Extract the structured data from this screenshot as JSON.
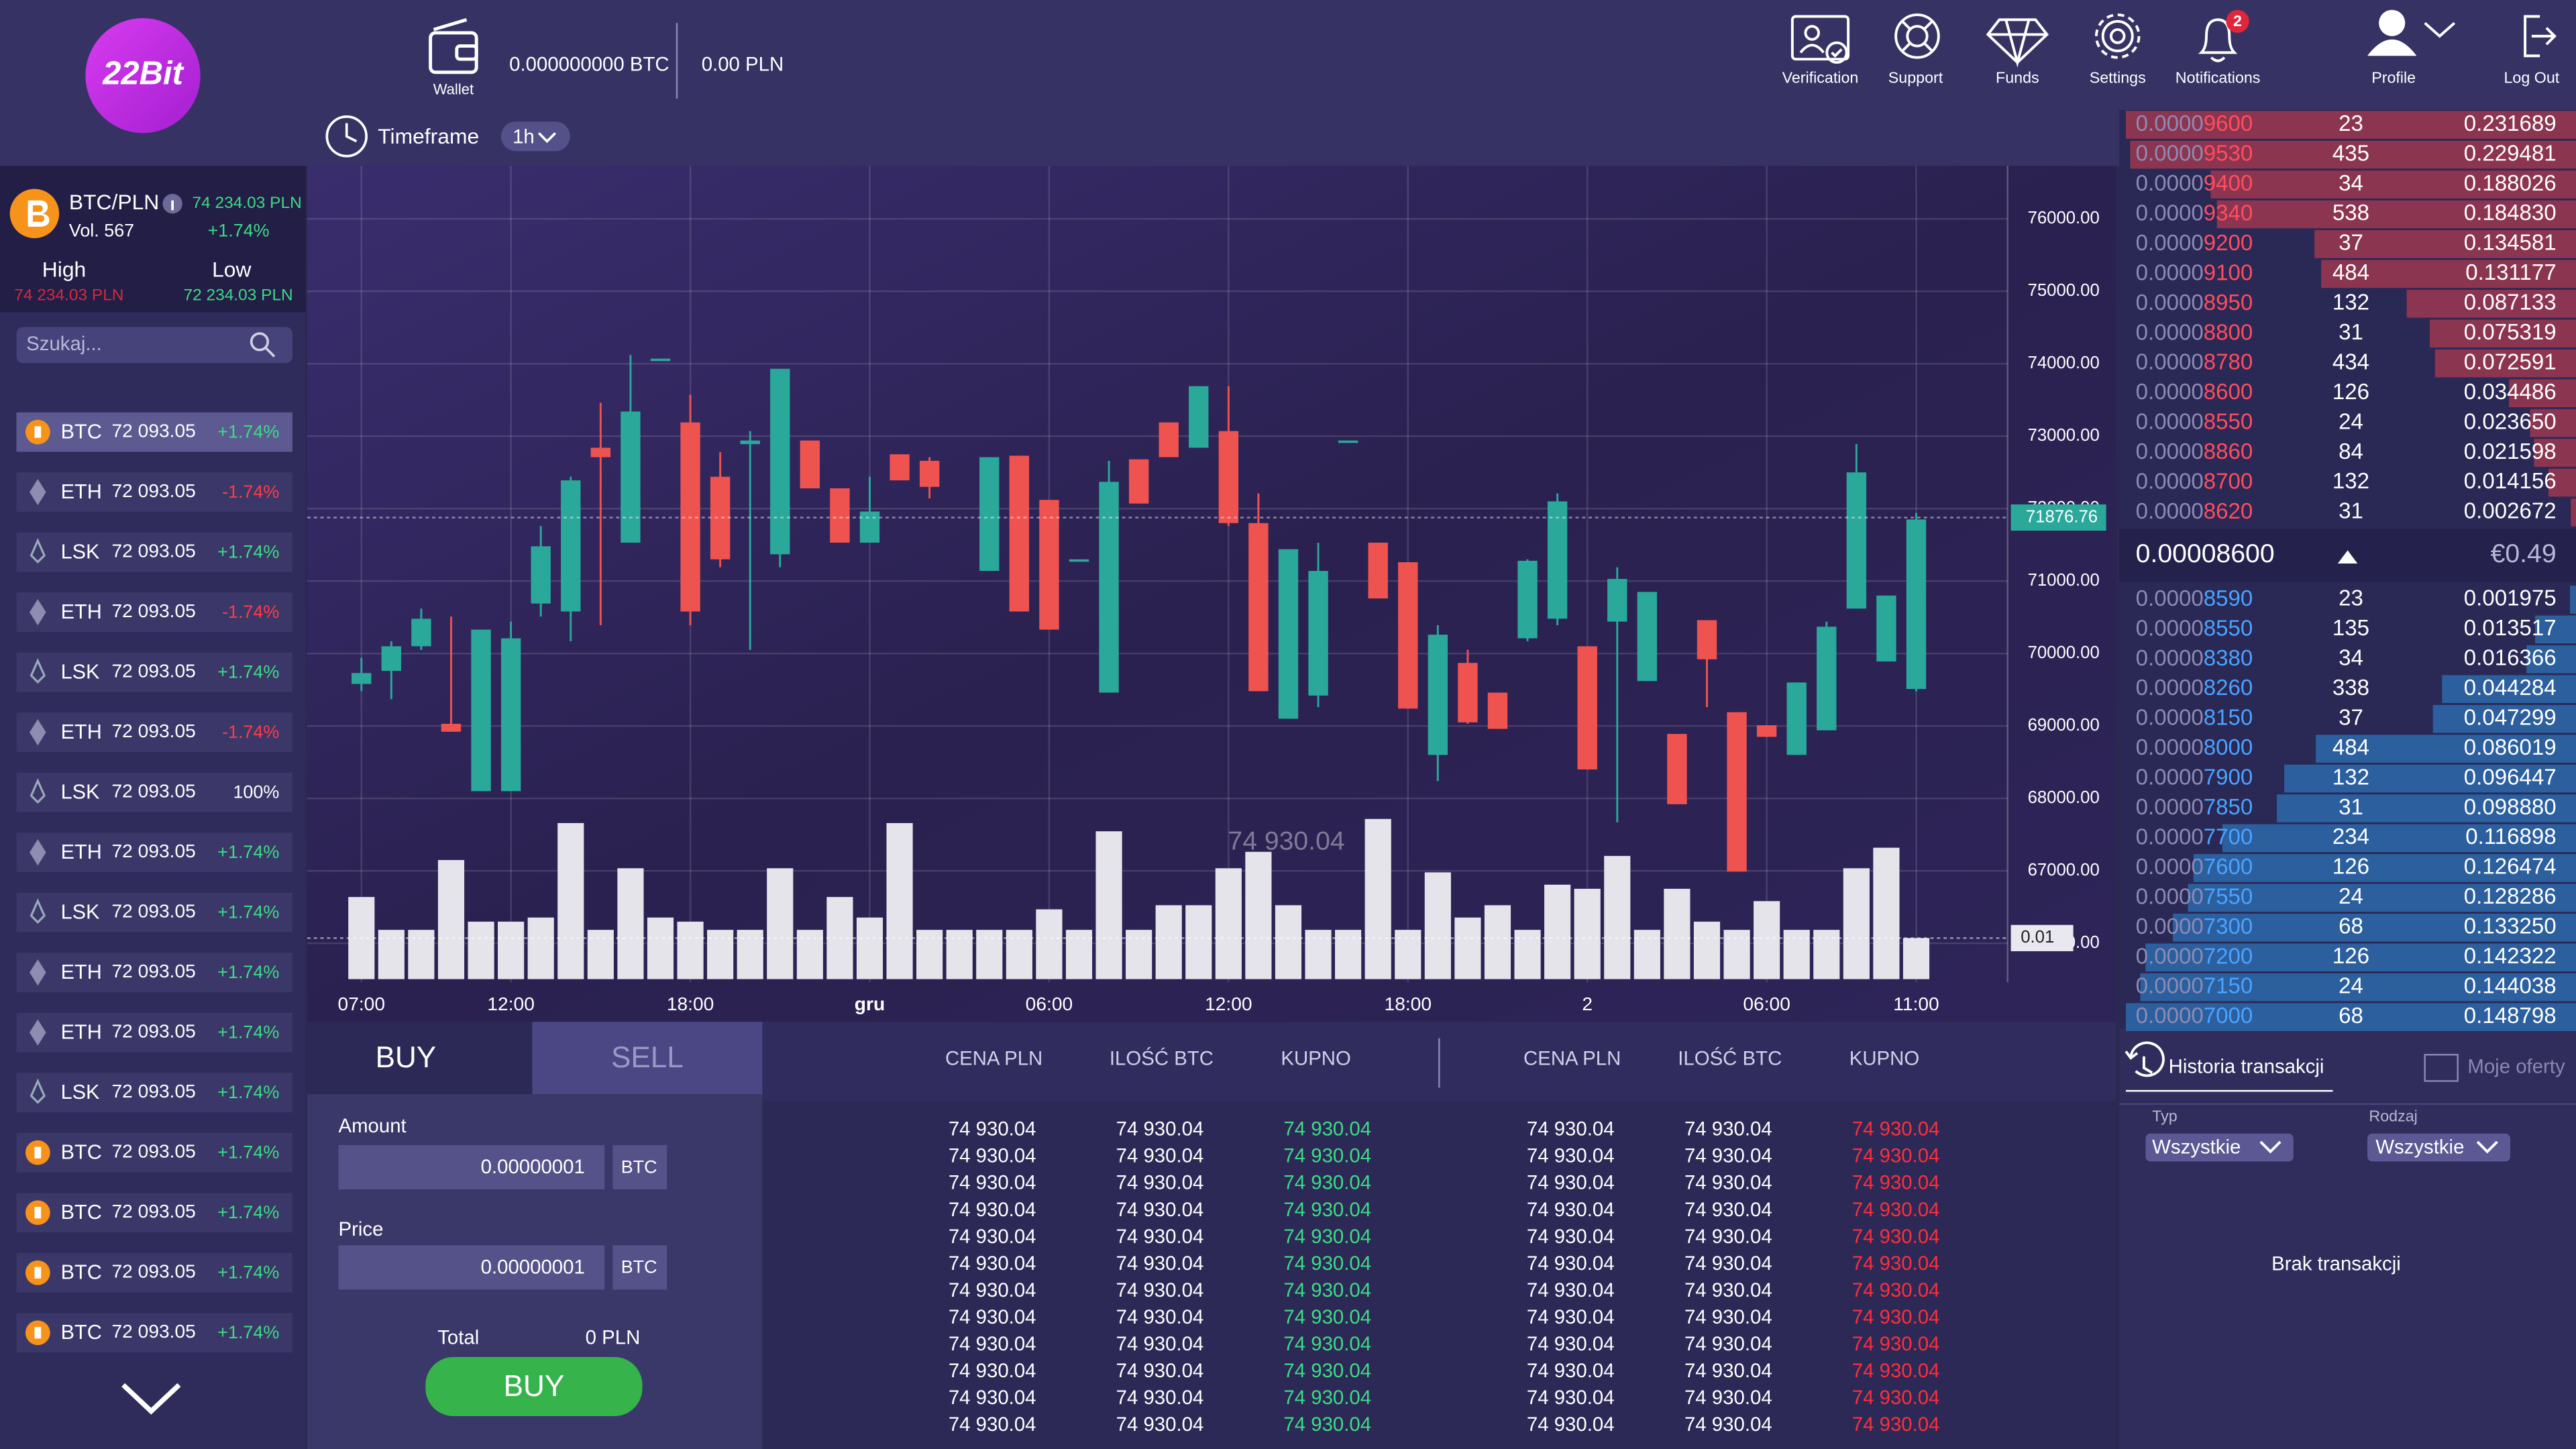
{
  "header": {
    "logo": "22Bit",
    "wallet_label": "Wallet",
    "wallet_btc": "0.000000000 BTC",
    "wallet_pln": "0.00 PLN",
    "timeframe_label": "Timeframe",
    "timeframe_value": "1h",
    "nav": [
      "Verification",
      "Support",
      "Funds",
      "Settings",
      "Notifications",
      "Profile",
      "Log Out"
    ],
    "notification_count": 2
  },
  "market": {
    "pair": "BTC/PLN",
    "price": "74 234.03 PLN",
    "volume": "Vol. 567",
    "change": "+1.74%",
    "high_label": "High",
    "high": "74 234.03 PLN",
    "low_label": "Low",
    "low": "72 234.03 PLN",
    "search_placeholder": "Szukaj..."
  },
  "coin_list": [
    {
      "symbol": "BTC",
      "price": "72 093.05",
      "change": "+1.74%",
      "color": "#3ddc84",
      "icon": "bitcoin"
    },
    {
      "symbol": "ETH",
      "price": "72 093.05",
      "change": "-1.74%",
      "color": "#ff3b46",
      "icon": "ethereum"
    },
    {
      "symbol": "LSK",
      "price": "72 093.05",
      "change": "+1.74%",
      "color": "#3ddc84",
      "icon": "lisk"
    },
    {
      "symbol": "ETH",
      "price": "72 093.05",
      "change": "-1.74%",
      "color": "#ff3b46",
      "icon": "ethereum"
    },
    {
      "symbol": "LSK",
      "price": "72 093.05",
      "change": "+1.74%",
      "color": "#3ddc84",
      "icon": "lisk"
    },
    {
      "symbol": "ETH",
      "price": "72 093.05",
      "change": "-1.74%",
      "color": "#ff3b46",
      "icon": "ethereum"
    },
    {
      "symbol": "LSK",
      "price": "72 093.05",
      "change": "100%",
      "color": "#ffffff",
      "icon": "lisk"
    },
    {
      "symbol": "ETH",
      "price": "72 093.05",
      "change": "+1.74%",
      "color": "#3ddc84",
      "icon": "ethereum"
    },
    {
      "symbol": "LSK",
      "price": "72 093.05",
      "change": "+1.74%",
      "color": "#3ddc84",
      "icon": "lisk"
    },
    {
      "symbol": "ETH",
      "price": "72 093.05",
      "change": "+1.74%",
      "color": "#3ddc84",
      "icon": "ethereum"
    },
    {
      "symbol": "ETH",
      "price": "72 093.05",
      "change": "+1.74%",
      "color": "#3ddc84",
      "icon": "ethereum"
    },
    {
      "symbol": "LSK",
      "price": "72 093.05",
      "change": "+1.74%",
      "color": "#3ddc84",
      "icon": "lisk"
    },
    {
      "symbol": "BTC",
      "price": "72 093.05",
      "change": "+1.74%",
      "color": "#3ddc84",
      "icon": "bitcoin"
    },
    {
      "symbol": "BTC",
      "price": "72 093.05",
      "change": "+1.74%",
      "color": "#3ddc84",
      "icon": "bitcoin"
    },
    {
      "symbol": "BTC",
      "price": "72 093.05",
      "change": "+1.74%",
      "color": "#3ddc84",
      "icon": "bitcoin"
    },
    {
      "symbol": "BTC",
      "price": "72 093.05",
      "change": "+1.74%",
      "color": "#3ddc84",
      "icon": "bitcoin"
    }
  ],
  "chart_data": {
    "type": "candlestick",
    "categories": [
      "07:00",
      null,
      null,
      null,
      null,
      "12:00",
      null,
      null,
      null,
      null,
      null,
      "18:00",
      null,
      null,
      null,
      null,
      null,
      "gru",
      null,
      null,
      null,
      null,
      null,
      "06:00",
      null,
      null,
      null,
      null,
      null,
      "12:00",
      null,
      null,
      null,
      null,
      null,
      "18:00",
      null,
      null,
      null,
      null,
      null,
      "2",
      null,
      null,
      null,
      null,
      null,
      "06:00",
      null,
      null,
      null,
      null,
      "11:00"
    ],
    "open": [
      69580,
      69760,
      70100,
      69030,
      68100,
      68100,
      70690,
      70580,
      72840,
      71530,
      74070,
      73190,
      72440,
      72890,
      71370,
      72940,
      72280,
      71530,
      72750,
      72660,
      null,
      71140,
      72730,
      72120,
      71300,
      69460,
      72680,
      73190,
      72840,
      73070,
      71800,
      69100,
      69420,
      72940,
      71530,
      71260,
      68600,
      69870,
      69460,
      70210,
      70480,
      70100,
      70440,
      69620,
      68890,
      70460,
      69190,
      69010,
      68600,
      68940,
      70620,
      69890,
      69510
    ],
    "high": [
      69940,
      70170,
      70620,
      70510,
      70330,
      70440,
      71760,
      72440,
      73460,
      74120,
      74070,
      73570,
      72780,
      73070,
      73930,
      72940,
      72280,
      72440,
      72750,
      72710,
      null,
      72710,
      72730,
      72120,
      71300,
      72660,
      72680,
      73190,
      73690,
      73690,
      72210,
      71440,
      71530,
      72940,
      71530,
      71260,
      70390,
      70050,
      69460,
      71300,
      72210,
      70100,
      71190,
      70850,
      68890,
      70460,
      69190,
      69010,
      69600,
      70440,
      72890,
      70800,
      71940
    ],
    "low": [
      69480,
      69370,
      70050,
      68920,
      68100,
      68100,
      70510,
      70170,
      70390,
      71530,
      74070,
      70390,
      71190,
      70050,
      71190,
      72280,
      71530,
      71530,
      72390,
      72140,
      null,
      71140,
      70580,
      70330,
      71300,
      69460,
      72070,
      72710,
      72840,
      71760,
      69480,
      69100,
      69260,
      72940,
      70760,
      69240,
      68240,
      69030,
      68960,
      70170,
      70390,
      68400,
      67670,
      69620,
      67920,
      69260,
      66990,
      68850,
      68600,
      68940,
      70620,
      69890,
      69480
    ],
    "close": [
      69730,
      70100,
      70480,
      68920,
      70330,
      70210,
      71480,
      72390,
      72710,
      73340,
      74070,
      70580,
      71300,
      72940,
      73930,
      72280,
      71530,
      71960,
      72390,
      72300,
      null,
      72710,
      70580,
      70330,
      71300,
      72370,
      72070,
      72710,
      73690,
      71800,
      69480,
      71440,
      71140,
      72940,
      70760,
      69240,
      70260,
      69050,
      68960,
      71280,
      72100,
      68400,
      71030,
      70850,
      67920,
      69920,
      66990,
      68850,
      69600,
      70370,
      72500,
      70800,
      71850
    ],
    "volume": [
      0.02,
      0.012,
      0.012,
      0.029,
      0.014,
      0.014,
      0.015,
      0.038,
      0.012,
      0.027,
      0.015,
      0.014,
      0.012,
      0.012,
      0.027,
      0.012,
      0.02,
      0.015,
      0.038,
      0.012,
      0.012,
      0.012,
      0.012,
      0.017,
      0.012,
      0.036,
      0.012,
      0.018,
      0.018,
      0.027,
      0.031,
      0.018,
      0.012,
      0.012,
      0.039,
      0.012,
      0.026,
      0.015,
      0.018,
      0.012,
      0.023,
      0.022,
      0.03,
      0.012,
      0.022,
      0.014,
      0.012,
      0.019,
      0.012,
      0.012,
      0.027,
      0.032,
      0.01
    ],
    "ylim": [
      65460,
      76730
    ],
    "yticks": [
      {
        "value": 66000,
        "label": "66000.00"
      },
      {
        "value": 67000,
        "label": "67000.00"
      },
      {
        "value": 68000,
        "label": "68000.00"
      },
      {
        "value": 69000,
        "label": "69000.00"
      },
      {
        "value": 70000,
        "label": "70000.00"
      },
      {
        "value": 71000,
        "label": "71000.00"
      },
      {
        "value": 72000,
        "label": "72000.00"
      },
      {
        "value": 73000,
        "label": "73000.00"
      },
      {
        "value": 74000,
        "label": "74000.00"
      },
      {
        "value": 75000,
        "label": "75000.00"
      },
      {
        "value": 76000,
        "label": "76000.00"
      }
    ],
    "volume_lim": [
      0,
      0.05
    ],
    "current_price": 71876.76,
    "volume_marker": 0.01,
    "watermark": "74 930.04",
    "up_color": "#2aa89a",
    "down_color": "#ef5350",
    "volume_color": "#e4e4ea",
    "grid": true
  },
  "order_book": {
    "asks": [
      [
        "0.00009600",
        "23",
        "0.231689"
      ],
      [
        "0.00009530",
        "435",
        "0.229481"
      ],
      [
        "0.00009400",
        "34",
        "0.188026"
      ],
      [
        "0.00009340",
        "538",
        "0.184830"
      ],
      [
        "0.00009200",
        "37",
        "0.134581"
      ],
      [
        "0.00009100",
        "484",
        "0.131177"
      ],
      [
        "0.00008950",
        "132",
        "0.087133"
      ],
      [
        "0.00008800",
        "31",
        "0.075319"
      ],
      [
        "0.00008780",
        "434",
        "0.072591"
      ],
      [
        "0.00008600",
        "126",
        "0.034486"
      ],
      [
        "0.00008550",
        "24",
        "0.023650"
      ],
      [
        "0.00008860",
        "84",
        "0.021598"
      ],
      [
        "0.00008700",
        "132",
        "0.014156"
      ],
      [
        "0.00008620",
        "31",
        "0.002672"
      ]
    ],
    "last_price": "0.00008600",
    "last_price_eur": "€0.49",
    "bids": [
      [
        "0.00008590",
        "23",
        "0.001975"
      ],
      [
        "0.00008550",
        "135",
        "0.013517"
      ],
      [
        "0.00008380",
        "34",
        "0.016366"
      ],
      [
        "0.00008260",
        "338",
        "0.044284"
      ],
      [
        "0.00008150",
        "37",
        "0.047299"
      ],
      [
        "0.00008000",
        "484",
        "0.086019"
      ],
      [
        "0.00007900",
        "132",
        "0.096447"
      ],
      [
        "0.00007850",
        "31",
        "0.098880"
      ],
      [
        "0.00007700",
        "234",
        "0.116898"
      ],
      [
        "0.00007600",
        "126",
        "0.126474"
      ],
      [
        "0.00007550",
        "24",
        "0.128286"
      ],
      [
        "0.00007300",
        "68",
        "0.133250"
      ],
      [
        "0.00007200",
        "126",
        "0.142322"
      ],
      [
        "0.00007150",
        "24",
        "0.144038"
      ],
      [
        "0.00007000",
        "68",
        "0.148798"
      ]
    ],
    "ask_color": "#ff4d5e",
    "bid_color": "#4aa3ff",
    "ask_bar_color": "#8c3550",
    "bid_bar_color": "#2c5f9e"
  },
  "order_form": {
    "tabs": [
      "BUY",
      "SELL"
    ],
    "amount_label": "Amount",
    "amount": "0.00000001",
    "amount_unit": "BTC",
    "price_label": "Price",
    "price": "0.00000001",
    "price_unit": "BTC",
    "total_label": "Total",
    "total": "0 PLN",
    "submit": "BUY"
  },
  "trades": {
    "buy": {
      "headers": [
        "CENA PLN",
        "ILOŚĆ BTC",
        "KUPNO"
      ],
      "accent": "#3ddc84",
      "rows": [
        [
          "74 930.04",
          "74 930.04",
          "74 930.04"
        ],
        [
          "74 930.04",
          "74 930.04",
          "74 930.04"
        ],
        [
          "74 930.04",
          "74 930.04",
          "74 930.04"
        ],
        [
          "74 930.04",
          "74 930.04",
          "74 930.04"
        ],
        [
          "74 930.04",
          "74 930.04",
          "74 930.04"
        ],
        [
          "74 930.04",
          "74 930.04",
          "74 930.04"
        ],
        [
          "74 930.04",
          "74 930.04",
          "74 930.04"
        ],
        [
          "74 930.04",
          "74 930.04",
          "74 930.04"
        ],
        [
          "74 930.04",
          "74 930.04",
          "74 930.04"
        ],
        [
          "74 930.04",
          "74 930.04",
          "74 930.04"
        ],
        [
          "74 930.04",
          "74 930.04",
          "74 930.04"
        ],
        [
          "74 930.04",
          "74 930.04",
          "74 930.04"
        ]
      ]
    },
    "sell": {
      "headers": [
        "CENA PLN",
        "ILOŚĆ BTC",
        "KUPNO"
      ],
      "accent": "#ff2e3c",
      "rows": [
        [
          "74 930.04",
          "74 930.04",
          "74 930.04"
        ],
        [
          "74 930.04",
          "74 930.04",
          "74 930.04"
        ],
        [
          "74 930.04",
          "74 930.04",
          "74 930.04"
        ],
        [
          "74 930.04",
          "74 930.04",
          "74 930.04"
        ],
        [
          "74 930.04",
          "74 930.04",
          "74 930.04"
        ],
        [
          "74 930.04",
          "74 930.04",
          "74 930.04"
        ],
        [
          "74 930.04",
          "74 930.04",
          "74 930.04"
        ],
        [
          "74 930.04",
          "74 930.04",
          "74 930.04"
        ],
        [
          "74 930.04",
          "74 930.04",
          "74 930.04"
        ],
        [
          "74 930.04",
          "74 930.04",
          "74 930.04"
        ],
        [
          "74 930.04",
          "74 930.04",
          "74 930.04"
        ],
        [
          "74 930.04",
          "74 930.04",
          "74 930.04"
        ]
      ]
    }
  },
  "history": {
    "tab_history": "Historia transakcji",
    "tab_offers": "Moje oferty",
    "type_label": "Typ",
    "type_value": "Wszystkie",
    "kind_label": "Rodzaj",
    "kind_value": "Wszystkie",
    "empty": "Brak transakcji"
  }
}
